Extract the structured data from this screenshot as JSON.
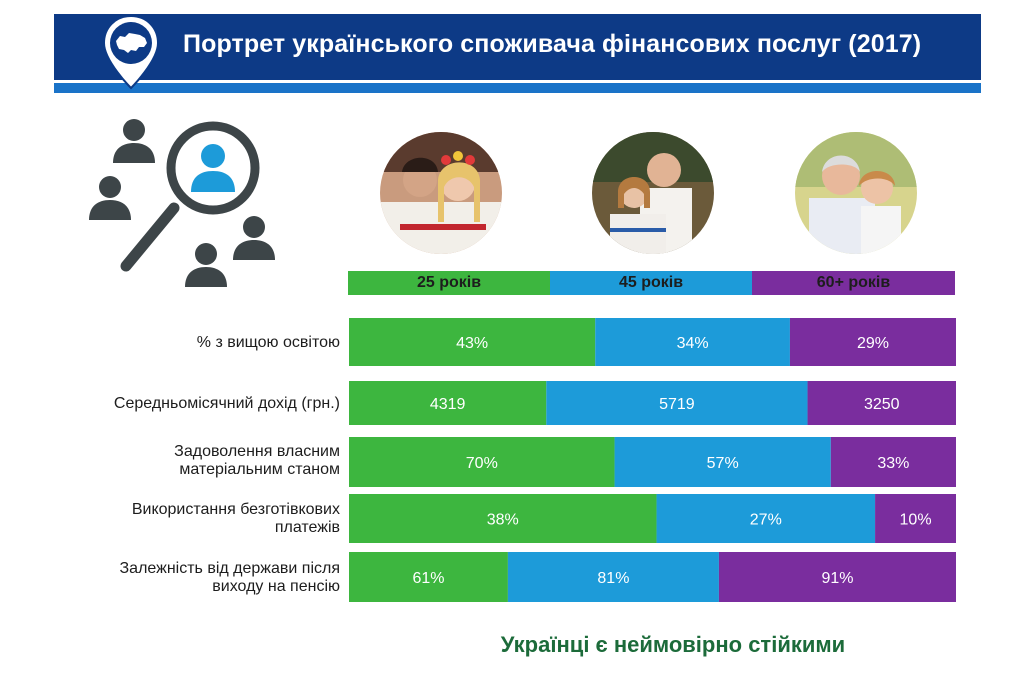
{
  "header": {
    "title": "Портрет українського споживача фінансових послуг (2017)"
  },
  "icons": {
    "pin": "ukraine-map-pin-icon",
    "search": "people-search-icon"
  },
  "photos": [
    {
      "name": "young-couple-photo"
    },
    {
      "name": "middle-aged-couple-photo"
    },
    {
      "name": "senior-couple-photo"
    }
  ],
  "colors": {
    "green": "#3db63f",
    "blue": "#1d9bd9",
    "purple": "#7a2d9e",
    "navy": "#0d3a86",
    "accent": "#1a73c8",
    "slogan": "#1c6b3a"
  },
  "chart_data": {
    "type": "bar",
    "orientation": "horizontal-stacked",
    "title": "Портрет українського споживача фінансових послуг (2017)",
    "series": [
      {
        "name": "25 років",
        "color": "#3db63f",
        "values": [
          "43%",
          "4319",
          "70%",
          "38%",
          "61%"
        ],
        "numeric": [
          43,
          4319,
          70,
          38,
          61
        ]
      },
      {
        "name": "45 років",
        "color": "#1d9bd9",
        "values": [
          "34%",
          "5719",
          "57%",
          "27%",
          "81%"
        ],
        "numeric": [
          34,
          5719,
          57,
          27,
          81
        ]
      },
      {
        "name": "60+ років",
        "color": "#7a2d9e",
        "values": [
          "29%",
          "3250",
          "33%",
          "10%",
          "91%"
        ],
        "numeric": [
          29,
          3250,
          33,
          10,
          91
        ]
      }
    ],
    "categories": [
      "% з вищою освітою",
      "Середньомісячний дохід (грн.)",
      "Задоволення власним матеріальним станом",
      "Використання безготівкових платежів",
      "Залежність від держави після виходу на пенсію"
    ]
  },
  "row_labels": [
    {
      "line1": "% з вищою освітою",
      "line2": ""
    },
    {
      "line1": "Середньомісячний дохід (грн.)",
      "line2": ""
    },
    {
      "line1": "Задоволення власним",
      "line2": "матеріальним станом"
    },
    {
      "line1": "Використання безготівкових",
      "line2": "платежів"
    },
    {
      "line1": "Залежність від держави після",
      "line2": "виходу на пенсію"
    }
  ],
  "slogan": "Українці є неймовірно стійкими"
}
